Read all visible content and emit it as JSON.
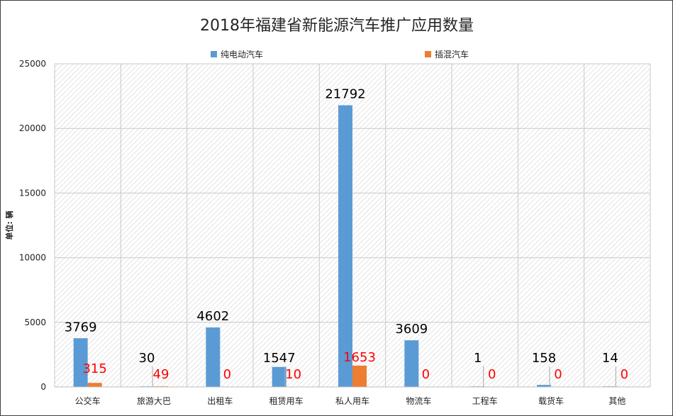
{
  "chart_data": {
    "type": "bar",
    "title": "2018年福建省新能源汽车推广应用数量",
    "ylabel": "单位: 辆",
    "xlabel": "",
    "ylim": [
      0,
      25000
    ],
    "yticks": [
      0,
      5000,
      10000,
      15000,
      20000,
      25000
    ],
    "grid": true,
    "legend_position": "top",
    "categories": [
      "公交车",
      "旅游大巴",
      "出租车",
      "租赁用车",
      "私人用车",
      "物流车",
      "工程车",
      "载货车",
      "其他"
    ],
    "series": [
      {
        "name": "纯电动汽车",
        "color": "#5b9bd5",
        "label_color": "#000000",
        "values": [
          3769,
          30,
          4602,
          1547,
          21792,
          3609,
          1,
          158,
          14
        ]
      },
      {
        "name": "插混汽车",
        "color": "#ed7d31",
        "label_color": "#ff0000",
        "values": [
          315,
          49,
          0,
          10,
          1653,
          0,
          0,
          0,
          0
        ]
      }
    ]
  }
}
